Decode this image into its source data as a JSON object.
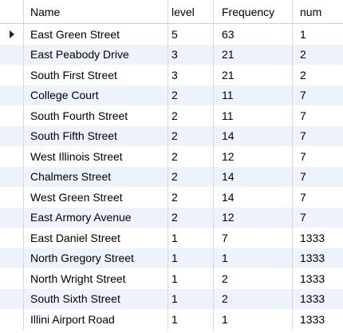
{
  "columns": [
    "Name",
    "level",
    "Frequency",
    "num"
  ],
  "rows": [
    {
      "name": "East Green Street",
      "level": "5",
      "frequency": "63",
      "num": "1"
    },
    {
      "name": "East Peabody Drive",
      "level": "3",
      "frequency": "21",
      "num": "2"
    },
    {
      "name": "South First Street",
      "level": "3",
      "frequency": "21",
      "num": "2"
    },
    {
      "name": "College Court",
      "level": "2",
      "frequency": "11",
      "num": "7"
    },
    {
      "name": "South Fourth Street",
      "level": "2",
      "frequency": "11",
      "num": "7"
    },
    {
      "name": "South Fifth Street",
      "level": "2",
      "frequency": "14",
      "num": "7"
    },
    {
      "name": "West Illinois Street",
      "level": "2",
      "frequency": "12",
      "num": "7"
    },
    {
      "name": "Chalmers Street",
      "level": "2",
      "frequency": "14",
      "num": "7"
    },
    {
      "name": "West Green Street",
      "level": "2",
      "frequency": "14",
      "num": "7"
    },
    {
      "name": "East Armory Avenue",
      "level": "2",
      "frequency": "12",
      "num": "7"
    },
    {
      "name": "East Daniel Street",
      "level": "1",
      "frequency": "7",
      "num": "1333"
    },
    {
      "name": "North Gregory Street",
      "level": "1",
      "frequency": "1",
      "num": "1333"
    },
    {
      "name": "North Wright Street",
      "level": "1",
      "frequency": "2",
      "num": "1333"
    },
    {
      "name": "South Sixth Street",
      "level": "1",
      "frequency": "2",
      "num": "1333"
    },
    {
      "name": "Illini Airport Road",
      "level": "1",
      "frequency": "1",
      "num": "1333"
    }
  ],
  "selected_row_index": 0,
  "icons": {
    "row_indicator": "current-row-arrow-icon"
  }
}
